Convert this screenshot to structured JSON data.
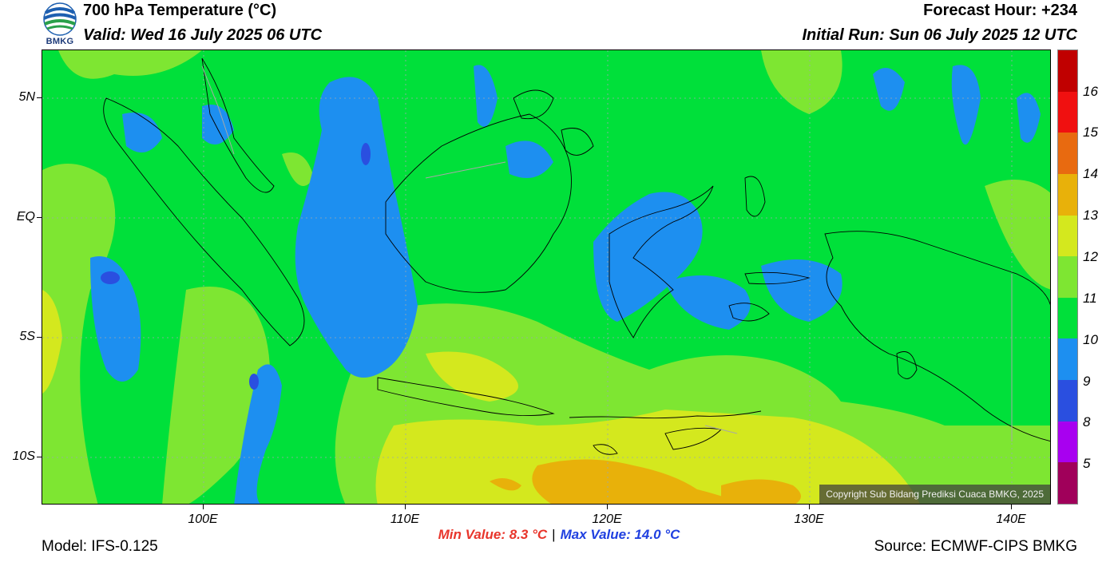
{
  "header": {
    "logo_text": "BMKG",
    "title": "700 hPa Temperature (°C)",
    "valid": "Valid: Wed 16 July 2025 06 UTC",
    "forecast_hour": "Forecast Hour: +234",
    "initial_run": "Initial Run: Sun 06 July 2025 12 UTC"
  },
  "map": {
    "lat_labels": [
      "5N",
      "EQ",
      "5S",
      "10S"
    ],
    "lon_labels": [
      "100E",
      "110E",
      "120E",
      "130E",
      "140E"
    ],
    "copyright": "Copyright Sub Bidang Prediksi Cuaca BMKG, 2025",
    "field_colors": {
      "band_9": "#1d8ff0",
      "band_10": "#00e03a",
      "band_11": "#7ee632",
      "band_12": "#d4e81e",
      "band_13": "#e8b10a"
    }
  },
  "colorbar": {
    "labels": [
      "16",
      "15",
      "14",
      "13",
      "12",
      "11",
      "10",
      "9",
      "8",
      "5"
    ],
    "colors_top_to_bottom": [
      "#c00000",
      "#f01010",
      "#e86a10",
      "#e8b10a",
      "#d4e81e",
      "#7ee632",
      "#00e03a",
      "#1d8ff0",
      "#2a4fe0",
      "#a800f0",
      "#a0005a"
    ]
  },
  "stats": {
    "min_label": "Min Value: 8.3 °C",
    "separator": "|",
    "max_label": "Max Value: 14.0 °C"
  },
  "footer": {
    "model": "Model: IFS-0.125",
    "source": "Source: ECMWF-CIPS BMKG"
  }
}
